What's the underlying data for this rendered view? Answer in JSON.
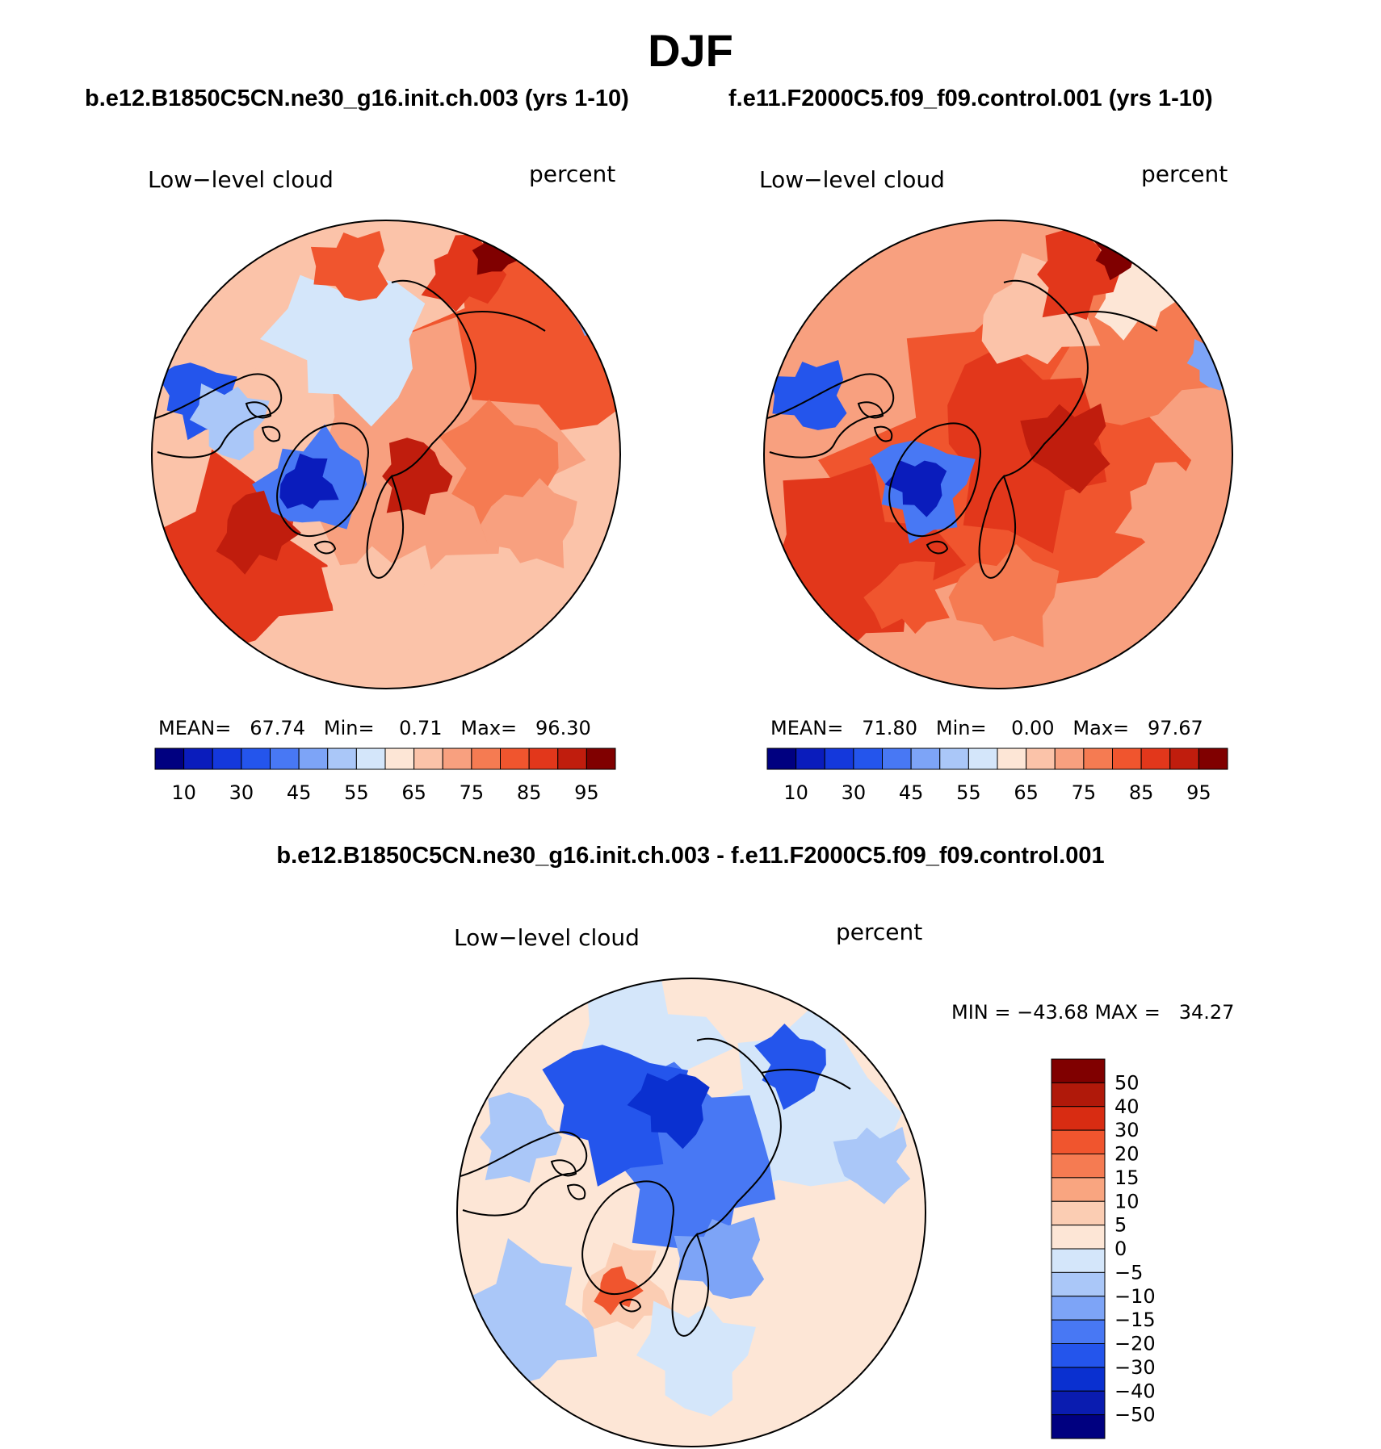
{
  "title": "DJF",
  "panels": {
    "left": {
      "case": "b.e12.B1850C5CN.ne30_g16.init.ch.003 (yrs 1-10)",
      "variable": "Low−level cloud",
      "units": "percent",
      "mean_label": "MEAN=",
      "mean_value": "67.74",
      "min_label": "Min=",
      "min_value": "0.71",
      "max_label": "Max=",
      "max_value": "96.30"
    },
    "right": {
      "case": "f.e11.F2000C5.f09_f09.control.001 (yrs 1-10)",
      "variable": "Low−level cloud",
      "units": "percent",
      "mean_label": "MEAN=",
      "mean_value": "71.80",
      "min_label": "Min=",
      "min_value": "0.00",
      "max_label": "Max=",
      "max_value": "97.67"
    },
    "diff": {
      "title": "b.e12.B1850C5CN.ne30_g16.init.ch.003 - f.e11.F2000C5.f09_f09.control.001",
      "variable": "Low−level cloud",
      "units": "percent",
      "minmax_text": "MIN = −43.68 MAX =   34.27"
    }
  },
  "chart_data": [
    {
      "type": "heatmap",
      "projection": "north-polar-stereographic",
      "title": "b.e12.B1850C5CN.ne30_g16.init.ch.003 (yrs 1-10)",
      "variable": "Low-level cloud",
      "units": "percent",
      "mean": 67.74,
      "min": 0.71,
      "max": 96.3,
      "contour_levels": [
        10,
        20,
        30,
        40,
        45,
        50,
        55,
        60,
        65,
        70,
        75,
        80,
        85,
        90,
        95
      ],
      "colorbar_tick_labels": [
        "10",
        "30",
        "45",
        "55",
        "65",
        "75",
        "85",
        "95"
      ],
      "colors": [
        "#000080",
        "#0a1cbc",
        "#1438dc",
        "#2455ec",
        "#4878f4",
        "#7da4f7",
        "#aac7f8",
        "#d4e6fa",
        "#fde6d6",
        "#fbc3a9",
        "#f8a07f",
        "#f57b52",
        "#f0552e",
        "#e2371b",
        "#c01d0d",
        "#800000"
      ]
    },
    {
      "type": "heatmap",
      "projection": "north-polar-stereographic",
      "title": "f.e11.F2000C5.f09_f09.control.001 (yrs 1-10)",
      "variable": "Low-level cloud",
      "units": "percent",
      "mean": 71.8,
      "min": 0.0,
      "max": 97.67,
      "contour_levels": [
        10,
        20,
        30,
        40,
        45,
        50,
        55,
        60,
        65,
        70,
        75,
        80,
        85,
        90,
        95
      ],
      "colorbar_tick_labels": [
        "10",
        "30",
        "45",
        "55",
        "65",
        "75",
        "85",
        "95"
      ],
      "colors": [
        "#000080",
        "#0a1cbc",
        "#1438dc",
        "#2455ec",
        "#4878f4",
        "#7da4f7",
        "#aac7f8",
        "#d4e6fa",
        "#fde6d6",
        "#fbc3a9",
        "#f8a07f",
        "#f57b52",
        "#f0552e",
        "#e2371b",
        "#c01d0d",
        "#800000"
      ]
    },
    {
      "type": "heatmap",
      "projection": "north-polar-stereographic",
      "title": "b.e12.B1850C5CN.ne30_g16.init.ch.003 - f.e11.F2000C5.f09_f09.control.001",
      "variable": "Low-level cloud",
      "units": "percent",
      "min": -43.68,
      "max": 34.27,
      "contour_levels": [
        -50,
        -40,
        -30,
        -20,
        -15,
        -10,
        -5,
        0,
        5,
        10,
        15,
        20,
        30,
        40,
        50
      ],
      "colorbar_tick_labels": [
        "50",
        "40",
        "30",
        "20",
        "15",
        "10",
        "5",
        "0",
        "−5",
        "−10",
        "−15",
        "−20",
        "−30",
        "−40",
        "−50"
      ],
      "colors": [
        "#800000",
        "#b0190a",
        "#d82c12",
        "#f0552e",
        "#f57b52",
        "#f9a580",
        "#fbcdb3",
        "#fde6d6",
        "#d4e6fa",
        "#aac7f8",
        "#7da4f7",
        "#4878f4",
        "#2455ec",
        "#0a30d0",
        "#0a1cb0",
        "#000080"
      ]
    }
  ]
}
